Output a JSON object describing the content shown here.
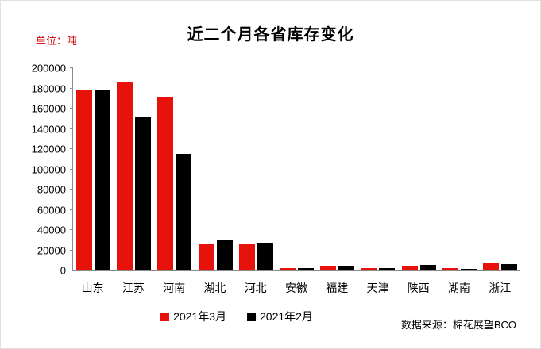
{
  "title": "近二个月各省库存变化",
  "unit_label": "单位：吨",
  "source_label": "数据来源：棉花展望BCO",
  "chart_data": {
    "type": "bar",
    "title": "近二个月各省库存变化",
    "ylabel": "单位：吨",
    "categories": [
      "山东",
      "江苏",
      "河南",
      "湖北",
      "河北",
      "安徽",
      "福建",
      "天津",
      "陕西",
      "湖南",
      "浙江"
    ],
    "series": [
      {
        "name": "2021年3月",
        "color": "#e8120c",
        "values": [
          179000,
          186000,
          172000,
          27000,
          26000,
          2500,
          5000,
          2000,
          5000,
          2000,
          8000
        ]
      },
      {
        "name": "2021年2月",
        "color": "#000000",
        "values": [
          178000,
          152000,
          115000,
          30000,
          27500,
          2500,
          5000,
          2500,
          5500,
          1500,
          6000
        ]
      }
    ],
    "ylim": [
      0,
      200000
    ],
    "yticks": [
      0,
      20000,
      40000,
      60000,
      80000,
      100000,
      120000,
      140000,
      160000,
      180000,
      200000
    ],
    "grid": false,
    "legend_position": "bottom",
    "source": "数据来源：棉花展望BCO"
  }
}
